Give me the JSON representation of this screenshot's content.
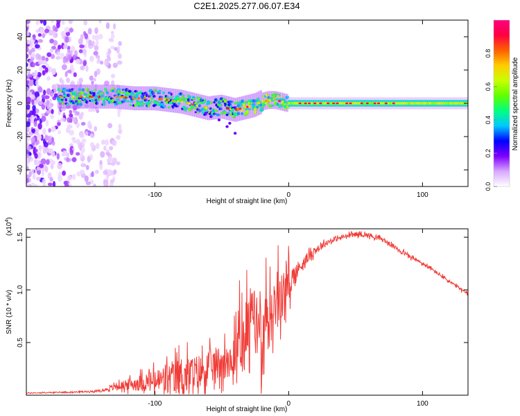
{
  "title": "C2E1.2025.277.06.07.E34",
  "chart_data": [
    {
      "type": "heatmap",
      "title": "C2E1.2025.277.06.07.E34",
      "xlabel": "Height of straight line (km)",
      "ylabel": "Frequency (Hz)",
      "xlim": [
        -196,
        134
      ],
      "ylim": [
        -50,
        50
      ],
      "xticks": [
        -100,
        0,
        100
      ],
      "xtick_labels": [
        "-100",
        "0",
        "100"
      ],
      "yticks": [
        -40,
        -20,
        0,
        20,
        40
      ],
      "ytick_labels": [
        "-40",
        "-20",
        "0",
        "20",
        "40"
      ],
      "ridge": {
        "x": [
          -170,
          -150,
          -130,
          -115,
          -100,
          -90,
          -80,
          -70,
          -60,
          -50,
          -45,
          -40,
          -35,
          -30,
          -25,
          -20,
          -15,
          -10,
          -5,
          0,
          20,
          60,
          100,
          134
        ],
        "y": [
          4,
          4,
          4,
          3,
          3,
          2,
          1,
          -1,
          -3,
          -2,
          -3,
          -4,
          -3,
          -2,
          -1,
          1,
          2,
          2,
          1,
          0,
          0,
          0,
          0,
          0
        ]
      },
      "colorbar": {
        "label": "Normalized spectral amplitude",
        "range": [
          0,
          1
        ],
        "ticks": [
          0.0,
          0.2,
          0.4,
          0.6,
          0.8
        ],
        "tick_labels": [
          "0.0",
          "0.2",
          "0.4",
          "0.6",
          "0.8"
        ],
        "colors": [
          "#ffffff",
          "#d8a8ff",
          "#8000ff",
          "#0000ff",
          "#00c8ff",
          "#00ff80",
          "#60ff00",
          "#c8ff00",
          "#ffcc00",
          "#ff6000",
          "#ff0040",
          "#ff0080"
        ]
      }
    },
    {
      "type": "line",
      "xlabel": "Height of straight line (km)",
      "ylabel": "SNR (10 * v/v)",
      "scale_label": "(x10",
      "scale_exp": "4",
      "scale_close": ")",
      "xlim": [
        -196,
        134
      ],
      "ylim": [
        0,
        1.58
      ],
      "xticks": [
        -100,
        0,
        100
      ],
      "xtick_labels": [
        "-100",
        "0",
        "100"
      ],
      "yticks": [
        0.5,
        1.0,
        1.5
      ],
      "ytick_labels": [
        "0.5",
        "1.0",
        "1.5"
      ],
      "color": "#f03c37",
      "envelope": {
        "x": [
          -196,
          -160,
          -140,
          -130,
          -120,
          -110,
          -100,
          -90,
          -80,
          -70,
          -60,
          -50,
          -40,
          -35,
          -30,
          -25,
          -20,
          -15,
          -10,
          -5,
          0,
          5,
          10,
          20,
          30,
          40,
          50,
          60,
          70,
          80,
          90,
          100,
          110,
          120,
          134
        ],
        "y": [
          0.02,
          0.03,
          0.04,
          0.08,
          0.1,
          0.12,
          0.13,
          0.15,
          0.18,
          0.2,
          0.26,
          0.32,
          0.38,
          0.45,
          0.55,
          0.62,
          0.7,
          0.75,
          0.85,
          0.95,
          1.05,
          1.15,
          1.25,
          1.38,
          1.46,
          1.5,
          1.53,
          1.52,
          1.48,
          1.4,
          1.32,
          1.25,
          1.17,
          1.08,
          0.96
        ]
      },
      "noise_amplitude": {
        "x": [
          -196,
          -140,
          -125,
          -100,
          -80,
          -60,
          -45,
          -30,
          -20,
          -10,
          0,
          10,
          30,
          134
        ],
        "y": [
          0.005,
          0.01,
          0.05,
          0.14,
          0.25,
          0.2,
          0.22,
          0.5,
          0.5,
          0.35,
          0.2,
          0.07,
          0.03,
          0.02
        ]
      }
    }
  ]
}
